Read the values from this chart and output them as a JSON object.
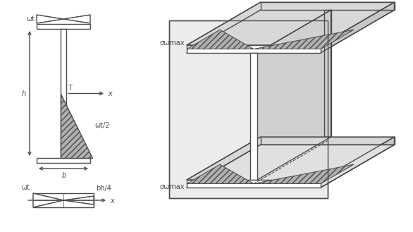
{
  "bg_color": "#ffffff",
  "line_color": "#4a4a4a",
  "fill_color": "#b0b0b0",
  "fig_width": 5.86,
  "fig_height": 3.29,
  "dpi": 100,
  "labels": {
    "omega_t": "ωt",
    "T": "T",
    "x": "x",
    "h": "h",
    "b": "b",
    "omega_half": "ωt/2",
    "bh4": "bh/4",
    "sigma_max": "σωmax"
  }
}
